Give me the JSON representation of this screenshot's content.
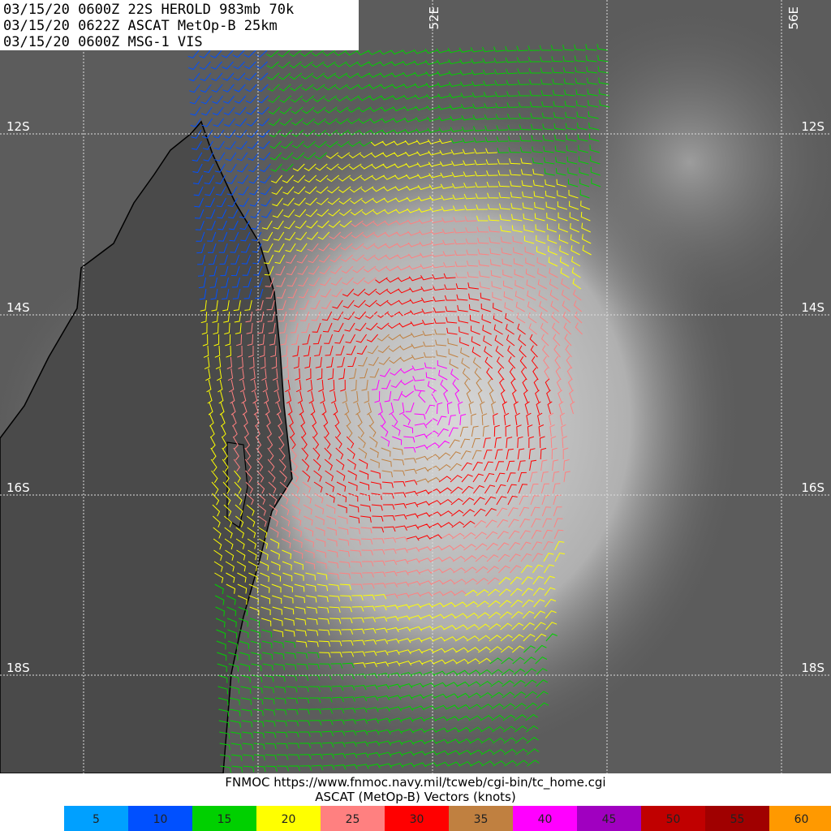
{
  "header": {
    "lines": [
      "03/15/20 0600Z  22S HEROLD 983mb 70k",
      "03/15/20 0622Z  ASCAT MetOp-B 25km",
      "03/15/20 0600Z  MSG-1 VIS"
    ]
  },
  "grid": {
    "latitudes": [
      "12S",
      "14S",
      "16S",
      "18S"
    ],
    "longitudes": [
      "52E",
      "56E"
    ]
  },
  "footer": {
    "source": "FNMOC https://www.fnmoc.navy.mil/tcweb/cgi-bin/tc_home.cgi",
    "caption": "ASCAT (MetOp-B) Vectors (knots)"
  },
  "legend": {
    "items": [
      {
        "value": 5,
        "color": "#00a0ff"
      },
      {
        "value": 10,
        "color": "#0050ff"
      },
      {
        "value": 15,
        "color": "#00d000"
      },
      {
        "value": 20,
        "color": "#ffff00"
      },
      {
        "value": 25,
        "color": "#ff8080"
      },
      {
        "value": 30,
        "color": "#ff0000"
      },
      {
        "value": 35,
        "color": "#c08040"
      },
      {
        "value": 40,
        "color": "#ff00ff"
      },
      {
        "value": 45,
        "color": "#a000c0"
      },
      {
        "value": 50,
        "color": "#c00000"
      },
      {
        "value": 55,
        "color": "#a00000"
      },
      {
        "value": 60,
        "color": "#ff9900"
      }
    ]
  }
}
